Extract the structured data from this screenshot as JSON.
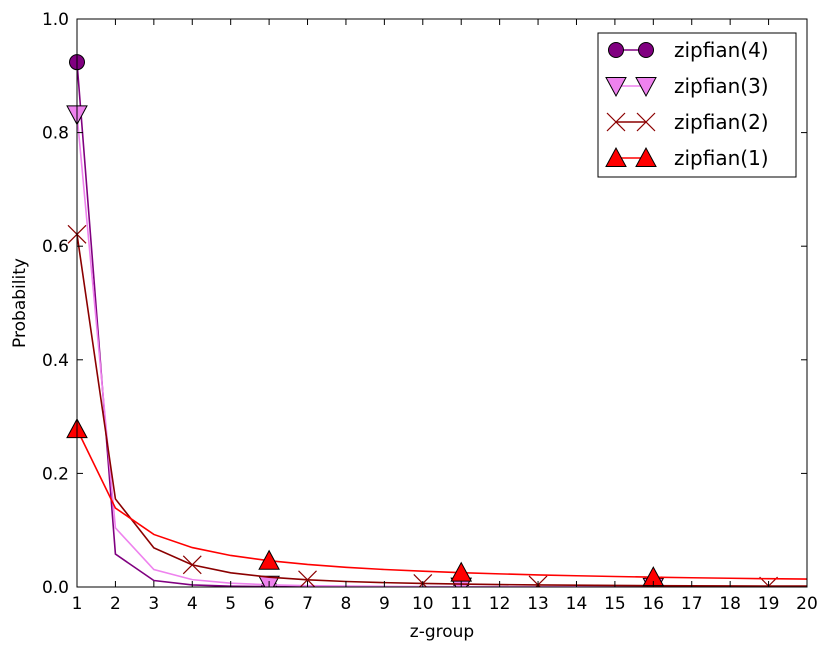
{
  "chart_data": {
    "type": "line",
    "title": "",
    "xlabel": "z-group",
    "ylabel": "Probability",
    "xlim": [
      1,
      20
    ],
    "ylim": [
      0.0,
      1.0
    ],
    "x_ticks": [
      1,
      2,
      3,
      4,
      5,
      6,
      7,
      8,
      9,
      10,
      11,
      12,
      13,
      14,
      15,
      16,
      17,
      18,
      19,
      20
    ],
    "y_ticks": [
      0.0,
      0.2,
      0.4,
      0.6,
      0.8,
      1.0
    ],
    "y_tick_labels": [
      "0.0",
      "0.2",
      "0.4",
      "0.6",
      "0.8",
      "1.0"
    ],
    "grid": false,
    "legend_position": "top-right",
    "x": [
      1,
      2,
      3,
      4,
      5,
      6,
      7,
      8,
      9,
      10,
      11,
      12,
      13,
      14,
      15,
      16,
      17,
      18,
      19,
      20
    ],
    "series": [
      {
        "name": "zipfian(4)",
        "color": "#800080",
        "marker": "circle",
        "marker_every_start": 0,
        "marker_every": 5,
        "values": [
          0.924,
          0.058,
          0.0114,
          0.0036,
          0.0015,
          0.0007,
          0.0004,
          0.0002,
          0.0001,
          0.0001,
          0.0001,
          0.0,
          0.0,
          0.0,
          0.0,
          0.0,
          0.0,
          0.0,
          0.0,
          0.0
        ]
      },
      {
        "name": "zipfian(3)",
        "color": "#ee82ee",
        "marker": "triangle-down",
        "marker_every_start": 0,
        "marker_every": 5,
        "values": [
          0.832,
          0.104,
          0.0308,
          0.013,
          0.0067,
          0.0039,
          0.0024,
          0.0016,
          0.0011,
          0.0008,
          0.0006,
          0.0005,
          0.0004,
          0.0003,
          0.0002,
          0.0002,
          0.0002,
          0.0001,
          0.0001,
          0.0001
        ]
      },
      {
        "name": "zipfian(2)",
        "color": "#8b0000",
        "marker": "x",
        "marker_every_start": 0,
        "marker_every": 3,
        "values": [
          0.621,
          0.155,
          0.069,
          0.039,
          0.025,
          0.0173,
          0.0127,
          0.0097,
          0.0077,
          0.0062,
          0.0051,
          0.0043,
          0.0037,
          0.0032,
          0.0028,
          0.0024,
          0.0021,
          0.0019,
          0.0017,
          0.0016
        ]
      },
      {
        "name": "zipfian(1)",
        "color": "#ff0000",
        "marker": "triangle-up",
        "marker_every_start": 0,
        "marker_every": 5,
        "values": [
          0.278,
          0.139,
          0.0925,
          0.0694,
          0.0555,
          0.0463,
          0.0397,
          0.0347,
          0.0308,
          0.0278,
          0.0252,
          0.0231,
          0.0213,
          0.0198,
          0.0185,
          0.0173,
          0.0163,
          0.0154,
          0.0146,
          0.0139
        ]
      }
    ]
  }
}
